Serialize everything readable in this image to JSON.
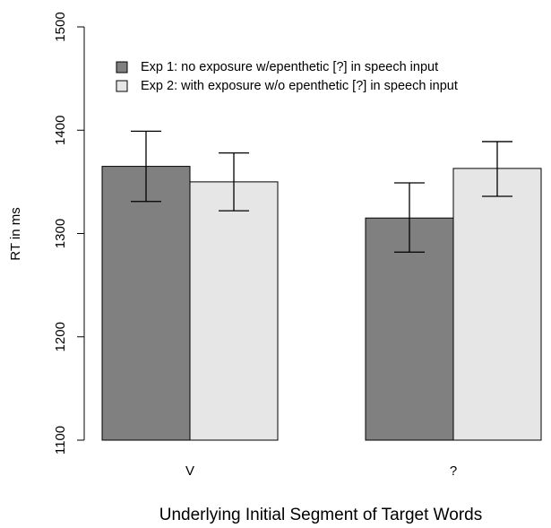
{
  "chart_data": {
    "type": "bar",
    "title": "",
    "xlabel": "Underlying Initial Segment of Target Words",
    "ylabel": "RT in ms",
    "ylim": [
      1100,
      1500
    ],
    "yticks": [
      "1100",
      "1200",
      "1300",
      "1400",
      "1500"
    ],
    "categories": [
      "V",
      "?"
    ],
    "grid": false,
    "legend_position": "top-left",
    "series": [
      {
        "name": "Exp 1: no exposure w/epenthetic [?] in speech input",
        "color": "#808080",
        "values": [
          1365,
          1315
        ],
        "error_low": [
          1331,
          1282
        ],
        "error_high": [
          1399,
          1349
        ]
      },
      {
        "name": "Exp 2: with exposure w/o epenthetic [?] in speech input",
        "color": "#e6e6e6",
        "values": [
          1350,
          1363
        ],
        "error_low": [
          1322,
          1336
        ],
        "error_high": [
          1378,
          1389
        ]
      }
    ]
  }
}
